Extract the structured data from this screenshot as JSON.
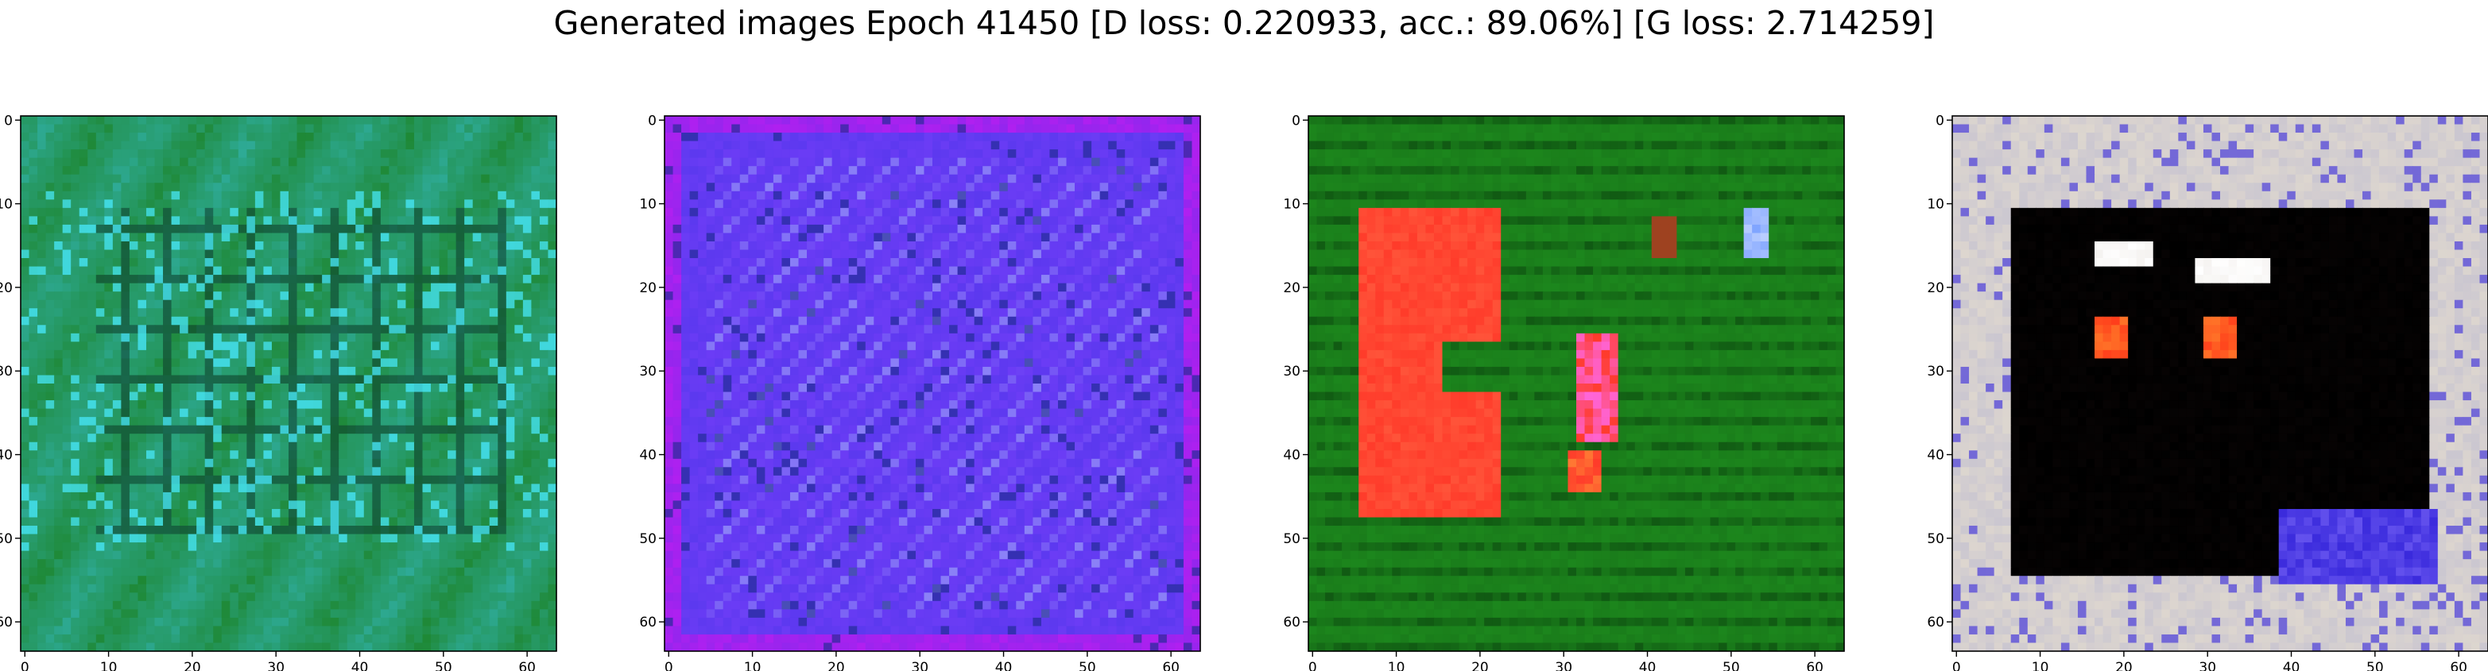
{
  "figure": {
    "title": "Generated images Epoch 41450 [D loss: 0.220933, acc.: 89.06%] [G loss: 2.714259]"
  },
  "chart_data": [
    {
      "type": "heatmap",
      "panel": "generated-image-1",
      "xlim": [
        -0.5,
        63.5
      ],
      "ylim": [
        63.5,
        -0.5
      ],
      "xticks": [
        0,
        10,
        20,
        30,
        40,
        50,
        60
      ],
      "yticks": [
        0,
        10,
        20,
        30,
        40,
        50,
        60
      ],
      "grid": false,
      "palette": {
        "base": "#1f8a3a",
        "secondary": "#33b5b5",
        "accent": "#45e3f0",
        "dark": "#0c3a2a"
      }
    },
    {
      "type": "heatmap",
      "panel": "generated-image-2",
      "xlim": [
        -0.5,
        63.5
      ],
      "ylim": [
        63.5,
        -0.5
      ],
      "xticks": [
        0,
        10,
        20,
        30,
        40,
        50,
        60
      ],
      "yticks": [
        0,
        10,
        20,
        30,
        40,
        50,
        60
      ],
      "grid": false,
      "palette": {
        "base": "#6b3cf5",
        "secondary": "#4a35e8",
        "accent": "#b9c8ff",
        "edge": "#b020f0",
        "dark": "#1c2a8a"
      }
    },
    {
      "type": "heatmap",
      "panel": "generated-image-3",
      "xlim": [
        -0.5,
        63.5
      ],
      "ylim": [
        63.5,
        -0.5
      ],
      "xticks": [
        0,
        10,
        20,
        30,
        40,
        50,
        60
      ],
      "yticks": [
        0,
        10,
        20,
        30,
        40,
        50,
        60
      ],
      "grid": false,
      "palette": {
        "base": "#1e8c1e",
        "secondary": "#0d4d10",
        "accent": "#ff3b2a",
        "highlight": "#ff66dd",
        "blue": "#7aa0ff"
      }
    },
    {
      "type": "heatmap",
      "panel": "generated-image-4",
      "xlim": [
        -0.5,
        63.5
      ],
      "ylim": [
        63.5,
        -0.5
      ],
      "xticks": [
        0,
        10,
        20,
        30,
        40,
        50,
        60
      ],
      "yticks": [
        0,
        10,
        20,
        30,
        40,
        50,
        60
      ],
      "grid": false,
      "palette": {
        "base": "#000000",
        "frame": "#ddd6cf",
        "accent": "#ff3a1a",
        "highlight": "#ffffff",
        "blue": "#3a2adc"
      }
    }
  ]
}
